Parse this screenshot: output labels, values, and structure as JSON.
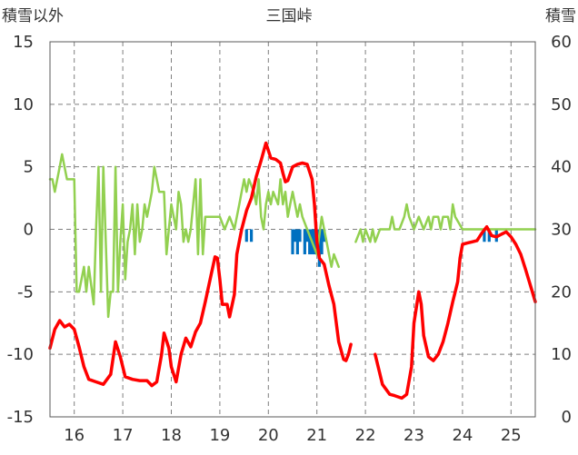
{
  "chart_data": {
    "type": "line",
    "title": "三国峠",
    "y_left_label": "積雪以外",
    "y_right_label": "積雪",
    "ylim_left": [
      -15,
      15
    ],
    "ylim_right": [
      0,
      60
    ],
    "y_left_ticks": [
      "15",
      "10",
      "5",
      "0",
      "-5",
      "-10",
      "-15"
    ],
    "y_right_ticks": [
      "60",
      "50",
      "40",
      "30",
      "20",
      "10",
      "0"
    ],
    "x_range": [
      15.5,
      25.5
    ],
    "x_ticks": [
      "16",
      "17",
      "18",
      "19",
      "20",
      "21",
      "22",
      "23",
      "24",
      "25"
    ],
    "grid": {
      "vertical": "dashed",
      "horizontal": "dashed"
    },
    "series": [
      {
        "color": "#ff0000",
        "axis": "left",
        "segments": [
          [
            [
              15.5,
              -9.5
            ],
            [
              15.6,
              -8
            ],
            [
              15.7,
              -7.3
            ],
            [
              15.8,
              -7.8
            ],
            [
              15.9,
              -7.6
            ],
            [
              16.0,
              -8
            ],
            [
              16.1,
              -9.4
            ],
            [
              16.2,
              -11
            ],
            [
              16.3,
              -12
            ],
            [
              16.45,
              -12.2
            ],
            [
              16.6,
              -12.4
            ],
            [
              16.75,
              -11.6
            ],
            [
              16.85,
              -9
            ],
            [
              16.95,
              -10.2
            ],
            [
              17.05,
              -11.8
            ],
            [
              17.2,
              -12
            ],
            [
              17.35,
              -12.1
            ],
            [
              17.5,
              -12.1
            ],
            [
              17.6,
              -12.5
            ],
            [
              17.7,
              -12.2
            ],
            [
              17.8,
              -10
            ],
            [
              17.85,
              -8.3
            ],
            [
              17.95,
              -9.5
            ],
            [
              18.0,
              -11
            ],
            [
              18.1,
              -12.2
            ],
            [
              18.2,
              -10
            ],
            [
              18.3,
              -8.7
            ],
            [
              18.4,
              -9.4
            ],
            [
              18.5,
              -8.2
            ],
            [
              18.6,
              -7.5
            ],
            [
              18.7,
              -5.8
            ],
            [
              18.8,
              -4
            ],
            [
              18.9,
              -2.2
            ],
            [
              18.95,
              -2.3
            ],
            [
              19.0,
              -4
            ],
            [
              19.05,
              -6
            ],
            [
              19.15,
              -6
            ],
            [
              19.2,
              -7
            ],
            [
              19.3,
              -5.2
            ],
            [
              19.35,
              -2
            ],
            [
              19.45,
              0
            ],
            [
              19.55,
              1.5
            ],
            [
              19.65,
              2.5
            ],
            [
              19.75,
              4.2
            ],
            [
              19.85,
              5.5
            ],
            [
              19.95,
              6.9
            ],
            [
              20.05,
              5.7
            ],
            [
              20.15,
              5.6
            ],
            [
              20.25,
              5.3
            ],
            [
              20.3,
              4.5
            ],
            [
              20.35,
              3.8
            ],
            [
              20.4,
              3.9
            ],
            [
              20.5,
              5
            ],
            [
              20.6,
              5.2
            ],
            [
              20.7,
              5.3
            ],
            [
              20.8,
              5.2
            ],
            [
              20.9,
              4
            ],
            [
              20.95,
              2
            ],
            [
              21.0,
              -1
            ],
            [
              21.05,
              -2.3
            ],
            [
              21.15,
              -2.8
            ],
            [
              21.25,
              -4.5
            ],
            [
              21.35,
              -6
            ],
            [
              21.45,
              -9
            ],
            [
              21.55,
              -10.4
            ],
            [
              21.6,
              -10.5
            ],
            [
              21.65,
              -10
            ],
            [
              21.7,
              -9.2
            ]
          ],
          [
            [
              22.2,
              -10
            ],
            [
              22.35,
              -12.4
            ],
            [
              22.5,
              -13.2
            ],
            [
              22.6,
              -13.3
            ],
            [
              22.75,
              -13.5
            ],
            [
              22.85,
              -13.2
            ],
            [
              22.95,
              -11
            ],
            [
              23.0,
              -7.5
            ],
            [
              23.1,
              -5
            ],
            [
              23.15,
              -6
            ],
            [
              23.2,
              -8.5
            ],
            [
              23.3,
              -10.2
            ],
            [
              23.4,
              -10.5
            ],
            [
              23.5,
              -10
            ],
            [
              23.6,
              -9
            ],
            [
              23.7,
              -7.5
            ],
            [
              23.8,
              -5.8
            ],
            [
              23.9,
              -4.2
            ],
            [
              23.95,
              -2.3
            ],
            [
              24.0,
              -1.2
            ],
            [
              24.1,
              -1.1
            ],
            [
              24.2,
              -1
            ],
            [
              24.3,
              -0.9
            ],
            [
              24.4,
              -0.3
            ],
            [
              24.5,
              0.2
            ],
            [
              24.6,
              -0.5
            ],
            [
              24.7,
              -0.6
            ],
            [
              24.8,
              -0.4
            ],
            [
              24.9,
              -0.2
            ],
            [
              25.0,
              -0.6
            ],
            [
              25.1,
              -1.2
            ],
            [
              25.2,
              -2
            ],
            [
              25.3,
              -3.2
            ],
            [
              25.4,
              -4.5
            ],
            [
              25.5,
              -5.8
            ]
          ]
        ]
      },
      {
        "color": "#92d050",
        "axis": "left",
        "segments": [
          [
            [
              15.5,
              4
            ],
            [
              15.55,
              4
            ],
            [
              15.6,
              3
            ],
            [
              15.7,
              5
            ],
            [
              15.75,
              6
            ],
            [
              15.8,
              5
            ],
            [
              15.85,
              4
            ],
            [
              15.9,
              4
            ],
            [
              16.0,
              4
            ],
            [
              16.05,
              -5
            ],
            [
              16.1,
              -5
            ],
            [
              16.2,
              -3
            ],
            [
              16.25,
              -5
            ],
            [
              16.3,
              -3
            ],
            [
              16.4,
              -6
            ],
            [
              16.45,
              0
            ],
            [
              16.5,
              5
            ],
            [
              16.55,
              -5
            ],
            [
              16.6,
              5
            ],
            [
              16.7,
              -7
            ],
            [
              16.75,
              -5
            ],
            [
              16.8,
              -5
            ],
            [
              16.85,
              5
            ],
            [
              16.9,
              -5
            ],
            [
              16.95,
              -1
            ],
            [
              17.0,
              2
            ],
            [
              17.05,
              -4
            ],
            [
              17.1,
              -1
            ],
            [
              17.15,
              0
            ],
            [
              17.2,
              2
            ],
            [
              17.25,
              -2
            ],
            [
              17.3,
              2
            ],
            [
              17.35,
              -1
            ],
            [
              17.4,
              0
            ],
            [
              17.45,
              2
            ],
            [
              17.5,
              1
            ],
            [
              17.55,
              2
            ],
            [
              17.6,
              3
            ],
            [
              17.65,
              5
            ],
            [
              17.7,
              4
            ],
            [
              17.75,
              3
            ],
            [
              17.85,
              3
            ],
            [
              17.9,
              -2
            ],
            [
              17.95,
              0
            ],
            [
              18.0,
              2
            ],
            [
              18.1,
              0
            ],
            [
              18.15,
              3
            ],
            [
              18.2,
              2
            ],
            [
              18.25,
              -1
            ],
            [
              18.3,
              0
            ],
            [
              18.35,
              -1
            ],
            [
              18.4,
              0
            ],
            [
              18.5,
              4
            ],
            [
              18.55,
              -2
            ],
            [
              18.6,
              4
            ],
            [
              18.65,
              -2
            ],
            [
              18.7,
              1
            ],
            [
              18.8,
              1
            ],
            [
              18.9,
              1
            ],
            [
              19.0,
              1
            ],
            [
              19.1,
              0
            ],
            [
              19.2,
              1
            ],
            [
              19.3,
              0
            ],
            [
              19.4,
              2
            ],
            [
              19.45,
              3
            ],
            [
              19.5,
              4
            ],
            [
              19.55,
              3
            ],
            [
              19.6,
              4
            ],
            [
              19.7,
              3
            ],
            [
              19.75,
              2
            ],
            [
              19.8,
              4
            ],
            [
              19.85,
              1
            ],
            [
              19.9,
              0
            ],
            [
              19.95,
              2
            ],
            [
              20.0,
              3
            ],
            [
              20.05,
              2
            ],
            [
              20.1,
              3
            ],
            [
              20.2,
              2
            ],
            [
              20.25,
              4
            ],
            [
              20.3,
              2
            ],
            [
              20.35,
              3
            ],
            [
              20.4,
              1
            ],
            [
              20.45,
              2
            ],
            [
              20.5,
              3
            ],
            [
              20.55,
              2
            ],
            [
              20.6,
              1
            ],
            [
              20.65,
              2
            ],
            [
              20.7,
              1
            ],
            [
              20.8,
              0
            ],
            [
              20.9,
              -1
            ],
            [
              21.0,
              -2
            ],
            [
              21.1,
              1
            ],
            [
              21.15,
              0
            ],
            [
              21.2,
              -1
            ],
            [
              21.25,
              -2
            ],
            [
              21.3,
              -3
            ],
            [
              21.35,
              -2
            ],
            [
              21.45,
              -3
            ]
          ],
          [
            [
              21.8,
              -1
            ],
            [
              21.9,
              0
            ],
            [
              21.95,
              -1
            ],
            [
              22.0,
              0
            ],
            [
              22.1,
              -1
            ],
            [
              22.15,
              0
            ],
            [
              22.2,
              -1
            ],
            [
              22.3,
              0
            ],
            [
              22.4,
              0
            ],
            [
              22.5,
              0
            ],
            [
              22.55,
              1
            ],
            [
              22.6,
              0
            ],
            [
              22.7,
              0
            ],
            [
              22.8,
              1
            ],
            [
              22.85,
              2
            ],
            [
              22.9,
              1
            ],
            [
              23.0,
              0
            ],
            [
              23.1,
              1
            ],
            [
              23.2,
              0
            ],
            [
              23.3,
              1
            ],
            [
              23.35,
              0
            ],
            [
              23.4,
              1
            ],
            [
              23.5,
              1
            ],
            [
              23.55,
              0
            ],
            [
              23.6,
              1
            ],
            [
              23.7,
              1
            ],
            [
              23.75,
              0
            ],
            [
              23.8,
              2
            ],
            [
              23.85,
              1
            ],
            [
              24.0,
              0
            ],
            [
              24.1,
              0
            ],
            [
              24.2,
              0
            ],
            [
              24.3,
              0
            ],
            [
              24.4,
              0
            ],
            [
              24.5,
              0
            ],
            [
              24.6,
              0
            ],
            [
              24.7,
              0
            ],
            [
              24.8,
              0
            ],
            [
              24.9,
              0
            ],
            [
              25.0,
              0
            ],
            [
              25.2,
              0
            ],
            [
              25.5,
              0
            ]
          ]
        ]
      }
    ],
    "bars": {
      "color": "#0070c0",
      "axis": "left",
      "values": [
        [
          19.55,
          -1
        ],
        [
          19.65,
          -1
        ],
        [
          20.5,
          -2
        ],
        [
          20.55,
          -1
        ],
        [
          20.6,
          -2
        ],
        [
          20.65,
          -1
        ],
        [
          20.75,
          -2
        ],
        [
          20.8,
          -1
        ],
        [
          20.85,
          -2
        ],
        [
          20.9,
          -2
        ],
        [
          20.95,
          -2
        ],
        [
          21.0,
          -2
        ],
        [
          21.05,
          -3
        ],
        [
          21.1,
          -2
        ],
        [
          21.15,
          -1
        ],
        [
          24.45,
          -1
        ],
        [
          24.55,
          -1
        ],
        [
          24.7,
          -1
        ]
      ]
    }
  }
}
